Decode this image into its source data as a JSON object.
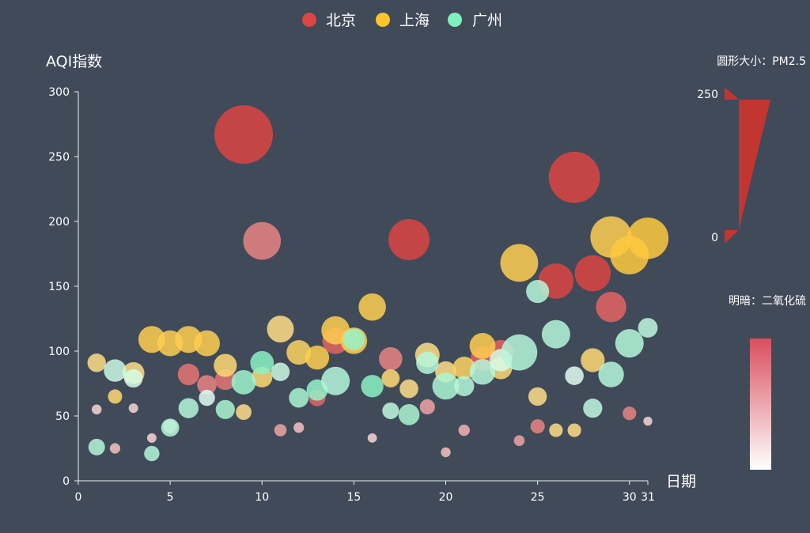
{
  "colors": {
    "background": "#404a59",
    "beijing": "#dd4444",
    "shanghai": "#fec42c",
    "guangzhou": "#80f1be",
    "axis": "#eeeeee",
    "visual_dark": "#d94e5d",
    "visual_light": "#ffffff"
  },
  "legend": [
    {
      "name": "北京",
      "color": "#dd4444"
    },
    {
      "name": "上海",
      "color": "#fec42c"
    },
    {
      "name": "广州",
      "color": "#80f1be"
    }
  ],
  "visual_map": {
    "size": {
      "title": "圆形大小：PM2.5",
      "max_label": "250",
      "min_label": "0"
    },
    "brightness": {
      "title": "明暗：二氧化硫"
    }
  },
  "chart_data": {
    "type": "scatter",
    "xlabel": "日期",
    "ylabel": "AQI指数",
    "xlim": [
      0,
      31
    ],
    "ylim": [
      0,
      300
    ],
    "x_ticks": [
      0,
      5,
      10,
      15,
      20,
      25,
      30,
      31
    ],
    "y_ticks": [
      0,
      50,
      100,
      150,
      200,
      250,
      300
    ],
    "size_dimension": "PM2.5",
    "size_range": [
      0,
      250
    ],
    "brightness_dimension": "二氧化硫",
    "series": [
      {
        "name": "北京",
        "points": [
          {
            "x": 1,
            "y": 55,
            "pm25": 9,
            "so2": 0.1
          },
          {
            "x": 2,
            "y": 25,
            "pm25": 11,
            "so2": 0.2
          },
          {
            "x": 3,
            "y": 56,
            "pm25": 7,
            "so2": 0.1
          },
          {
            "x": 4,
            "y": 33,
            "pm25": 7,
            "so2": 0.1
          },
          {
            "x": 5,
            "y": 42,
            "pm25": 24,
            "so2": 0.2
          },
          {
            "x": 6,
            "y": 82,
            "pm25": 58,
            "so2": 0.7
          },
          {
            "x": 7,
            "y": 74,
            "pm25": 49,
            "so2": 0.6
          },
          {
            "x": 8,
            "y": 78,
            "pm25": 55,
            "so2": 0.7
          },
          {
            "x": 9,
            "y": 267,
            "pm25": 216,
            "so2": 1.0
          },
          {
            "x": 10,
            "y": 185,
            "pm25": 127,
            "so2": 0.6
          },
          {
            "x": 11,
            "y": 39,
            "pm25": 19,
            "so2": 0.4
          },
          {
            "x": 12,
            "y": 41,
            "pm25": 11,
            "so2": 0.2
          },
          {
            "x": 13,
            "y": 64,
            "pm25": 38,
            "so2": 0.8
          },
          {
            "x": 14,
            "y": 108,
            "pm25": 79,
            "so2": 0.8
          },
          {
            "x": 15,
            "y": 108,
            "pm25": 63,
            "so2": 0.8
          },
          {
            "x": 16,
            "y": 33,
            "pm25": 6,
            "so2": 0.1
          },
          {
            "x": 17,
            "y": 94,
            "pm25": 66,
            "so2": 0.6
          },
          {
            "x": 18,
            "y": 186,
            "pm25": 142,
            "so2": 1.0
          },
          {
            "x": 19,
            "y": 57,
            "pm25": 31,
            "so2": 0.4
          },
          {
            "x": 20,
            "y": 22,
            "pm25": 8,
            "so2": 0.2
          },
          {
            "x": 21,
            "y": 39,
            "pm25": 15,
            "so2": 0.3
          },
          {
            "x": 22,
            "y": 94,
            "pm25": 69,
            "so2": 0.8
          },
          {
            "x": 23,
            "y": 99,
            "pm25": 73,
            "so2": 0.8
          },
          {
            "x": 24,
            "y": 31,
            "pm25": 12,
            "so2": 0.4
          },
          {
            "x": 25,
            "y": 42,
            "pm25": 27,
            "so2": 0.6
          },
          {
            "x": 26,
            "y": 154,
            "pm25": 117,
            "so2": 1.0
          },
          {
            "x": 27,
            "y": 234,
            "pm25": 185,
            "so2": 1.0
          },
          {
            "x": 28,
            "y": 160,
            "pm25": 120,
            "so2": 1.0
          },
          {
            "x": 29,
            "y": 134,
            "pm25": 96,
            "so2": 0.8
          },
          {
            "x": 30,
            "y": 52,
            "pm25": 24,
            "so2": 0.6
          },
          {
            "x": 31,
            "y": 46,
            "pm25": 5,
            "so2": 0.1
          }
        ]
      },
      {
        "name": "上海",
        "points": [
          {
            "x": 1,
            "y": 91,
            "pm25": 45,
            "so2": 0.5
          },
          {
            "x": 2,
            "y": 65,
            "pm25": 27,
            "so2": 0.6
          },
          {
            "x": 3,
            "y": 83,
            "pm25": 60,
            "so2": 0.5
          },
          {
            "x": 4,
            "y": 109,
            "pm25": 81,
            "so2": 0.8
          },
          {
            "x": 5,
            "y": 106,
            "pm25": 77,
            "so2": 0.8
          },
          {
            "x": 6,
            "y": 109,
            "pm25": 81,
            "so2": 0.8
          },
          {
            "x": 7,
            "y": 106,
            "pm25": 77,
            "so2": 0.8
          },
          {
            "x": 8,
            "y": 89,
            "pm25": 65,
            "so2": 0.6
          },
          {
            "x": 9,
            "y": 53,
            "pm25": 33,
            "so2": 0.5
          },
          {
            "x": 10,
            "y": 80,
            "pm25": 55,
            "so2": 0.6
          },
          {
            "x": 11,
            "y": 117,
            "pm25": 81,
            "so2": 0.5
          },
          {
            "x": 12,
            "y": 99,
            "pm25": 71,
            "so2": 0.7
          },
          {
            "x": 13,
            "y": 95,
            "pm25": 69,
            "so2": 0.8
          },
          {
            "x": 14,
            "y": 116,
            "pm25": 87,
            "so2": 0.8
          },
          {
            "x": 15,
            "y": 108,
            "pm25": 80,
            "so2": 0.8
          },
          {
            "x": 16,
            "y": 134,
            "pm25": 83,
            "so2": 0.8
          },
          {
            "x": 17,
            "y": 79,
            "pm25": 43,
            "so2": 0.6
          },
          {
            "x": 18,
            "y": 71,
            "pm25": 46,
            "so2": 0.5
          },
          {
            "x": 19,
            "y": 97,
            "pm25": 71,
            "so2": 0.5
          },
          {
            "x": 20,
            "y": 84,
            "pm25": 57,
            "so2": 0.5
          },
          {
            "x": 21,
            "y": 87,
            "pm25": 63,
            "so2": 0.7
          },
          {
            "x": 22,
            "y": 104,
            "pm25": 77,
            "so2": 0.8
          },
          {
            "x": 23,
            "y": 87,
            "pm25": 62,
            "so2": 0.6
          },
          {
            "x": 24,
            "y": 168,
            "pm25": 128,
            "so2": 0.8
          },
          {
            "x": 25,
            "y": 65,
            "pm25": 45,
            "so2": 0.5
          },
          {
            "x": 26,
            "y": 39,
            "pm25": 24,
            "so2": 0.5
          },
          {
            "x": 27,
            "y": 39,
            "pm25": 24,
            "so2": 0.5
          },
          {
            "x": 28,
            "y": 93,
            "pm25": 68,
            "so2": 0.6
          },
          {
            "x": 29,
            "y": 188,
            "pm25": 143,
            "so2": 0.8
          },
          {
            "x": 30,
            "y": 174,
            "pm25": 131,
            "so2": 0.9
          },
          {
            "x": 31,
            "y": 187,
            "pm25": 143,
            "so2": 0.9
          }
        ]
      },
      {
        "name": "广州",
        "points": [
          {
            "x": 1,
            "y": 26,
            "pm25": 37,
            "so2": 0.5
          },
          {
            "x": 2,
            "y": 85,
            "pm25": 62,
            "so2": 0.3
          },
          {
            "x": 3,
            "y": 79,
            "pm25": 45,
            "so2": 0.2
          },
          {
            "x": 4,
            "y": 21,
            "pm25": 32,
            "so2": 0.5
          },
          {
            "x": 5,
            "y": 41,
            "pm25": 43,
            "so2": 0.5
          },
          {
            "x": 6,
            "y": 56,
            "pm25": 52,
            "so2": 0.5
          },
          {
            "x": 7,
            "y": 64,
            "pm25": 35,
            "so2": 0.1
          },
          {
            "x": 8,
            "y": 55,
            "pm25": 48,
            "so2": 0.6
          },
          {
            "x": 9,
            "y": 76,
            "pm25": 70,
            "so2": 0.7
          },
          {
            "x": 10,
            "y": 91,
            "pm25": 67,
            "so2": 0.9
          },
          {
            "x": 11,
            "y": 84,
            "pm25": 45,
            "so2": 0.3
          },
          {
            "x": 12,
            "y": 64,
            "pm25": 50,
            "so2": 0.6
          },
          {
            "x": 13,
            "y": 70,
            "pm25": 57,
            "so2": 0.8
          },
          {
            "x": 14,
            "y": 77,
            "pm25": 88,
            "so2": 0.5
          },
          {
            "x": 15,
            "y": 109,
            "pm25": 59,
            "so2": 0.8
          },
          {
            "x": 16,
            "y": 73,
            "pm25": 62,
            "so2": 0.9
          },
          {
            "x": 17,
            "y": 54,
            "pm25": 37,
            "so2": 0.4
          },
          {
            "x": 18,
            "y": 51,
            "pm25": 56,
            "so2": 0.6
          },
          {
            "x": 19,
            "y": 91,
            "pm25": 62,
            "so2": 0.5
          },
          {
            "x": 20,
            "y": 73,
            "pm25": 81,
            "so2": 0.6
          },
          {
            "x": 21,
            "y": 73,
            "pm25": 52,
            "so2": 0.5
          },
          {
            "x": 22,
            "y": 84,
            "pm25": 76,
            "so2": 0.5
          },
          {
            "x": 23,
            "y": 93,
            "pm25": 62,
            "so2": 0.2
          },
          {
            "x": 24,
            "y": 99,
            "pm25": 120,
            "so2": 0.5
          },
          {
            "x": 25,
            "y": 146,
            "pm25": 65,
            "so2": 0.5
          },
          {
            "x": 26,
            "y": 113,
            "pm25": 88,
            "so2": 0.5
          },
          {
            "x": 27,
            "y": 81,
            "pm25": 46,
            "so2": 0.1
          },
          {
            "x": 28,
            "y": 56,
            "pm25": 48,
            "so2": 0.4
          },
          {
            "x": 29,
            "y": 82,
            "pm25": 76,
            "so2": 0.5
          },
          {
            "x": 30,
            "y": 106,
            "pm25": 88,
            "so2": 0.5
          },
          {
            "x": 31,
            "y": 118,
            "pm25": 50,
            "so2": 0.4
          }
        ]
      }
    ]
  }
}
